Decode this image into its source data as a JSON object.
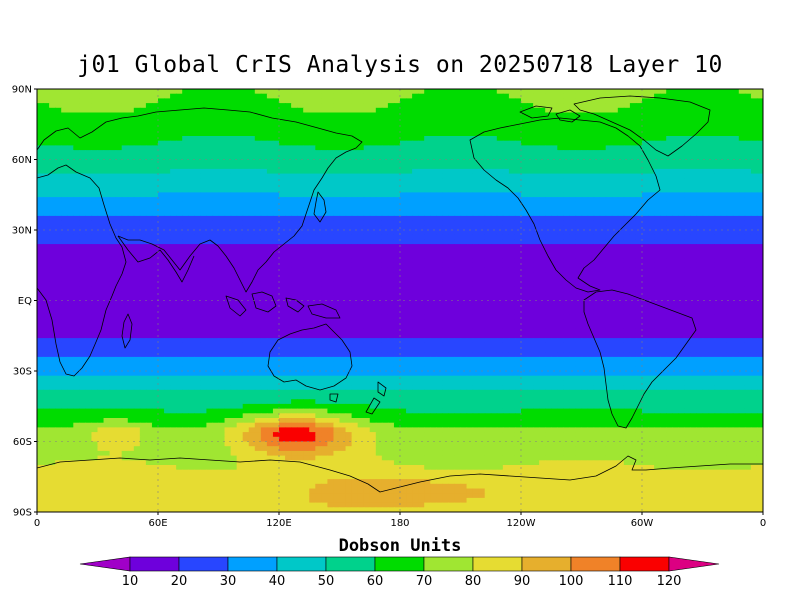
{
  "title": "j01 Global CrIS Analysis on 20250718 Layer 10",
  "axes": {
    "lat_ticks": [
      {
        "value": 90,
        "label": "90N"
      },
      {
        "value": 60,
        "label": "60N"
      },
      {
        "value": 30,
        "label": "30N"
      },
      {
        "value": 0,
        "label": "EQ"
      },
      {
        "value": -30,
        "label": "30S"
      },
      {
        "value": -60,
        "label": "60S"
      },
      {
        "value": -90,
        "label": "90S"
      }
    ],
    "lon_ticks": [
      {
        "value": 0,
        "label": "0"
      },
      {
        "value": 60,
        "label": "60E"
      },
      {
        "value": 120,
        "label": "120E"
      },
      {
        "value": 180,
        "label": "180"
      },
      {
        "value": 240,
        "label": "120W"
      },
      {
        "value": 300,
        "label": "60W"
      },
      {
        "value": 360,
        "label": "0"
      }
    ],
    "lon_range": [
      0,
      360
    ],
    "lat_range": [
      -90,
      90
    ],
    "grid": true
  },
  "colorbar": {
    "title": "Dobson Units",
    "levels": [
      10,
      20,
      30,
      40,
      50,
      60,
      70,
      80,
      90,
      100,
      110,
      120
    ],
    "colors": [
      "#a000c8",
      "#6e00dc",
      "#2846ff",
      "#00a0ff",
      "#00c8c8",
      "#00d28c",
      "#00dc00",
      "#a0e632",
      "#e6dc32",
      "#e6af2d",
      "#f08228",
      "#fa0000",
      "#dc0082"
    ]
  },
  "chart_data": {
    "type": "heatmap",
    "title": "j01 Global CrIS Analysis on 20250718 Layer 10",
    "units": "Dobson Units",
    "x": [
      0,
      60,
      120,
      180,
      240,
      300,
      360
    ],
    "y": [
      90,
      60,
      30,
      0,
      -30,
      -60,
      -90
    ],
    "zonal_profile": [
      {
        "lat": 90,
        "value": 72
      },
      {
        "lat": 80,
        "value": 68
      },
      {
        "lat": 70,
        "value": 62
      },
      {
        "lat": 60,
        "value": 55
      },
      {
        "lat": 50,
        "value": 46
      },
      {
        "lat": 40,
        "value": 34
      },
      {
        "lat": 30,
        "value": 23
      },
      {
        "lat": 20,
        "value": 18
      },
      {
        "lat": 0,
        "value": 17
      },
      {
        "lat": -15,
        "value": 18
      },
      {
        "lat": -20,
        "value": 24
      },
      {
        "lat": -30,
        "value": 38
      },
      {
        "lat": -40,
        "value": 53
      },
      {
        "lat": -50,
        "value": 63
      },
      {
        "lat": -55,
        "value": 72
      },
      {
        "lat": -65,
        "value": 76
      },
      {
        "lat": -75,
        "value": 84
      },
      {
        "lat": -90,
        "value": 84
      }
    ],
    "anomalies": [
      {
        "lon": 128,
        "lat": -57,
        "peak": 115,
        "lon_radius": 28,
        "lat_radius": 9
      },
      {
        "lon": 185,
        "lat": -82,
        "peak": 100,
        "lon_radius": 45,
        "lat_radius": 6
      },
      {
        "lon": 40,
        "lat": -57,
        "peak": 88,
        "lon_radius": 12,
        "lat_radius": 6
      }
    ]
  }
}
